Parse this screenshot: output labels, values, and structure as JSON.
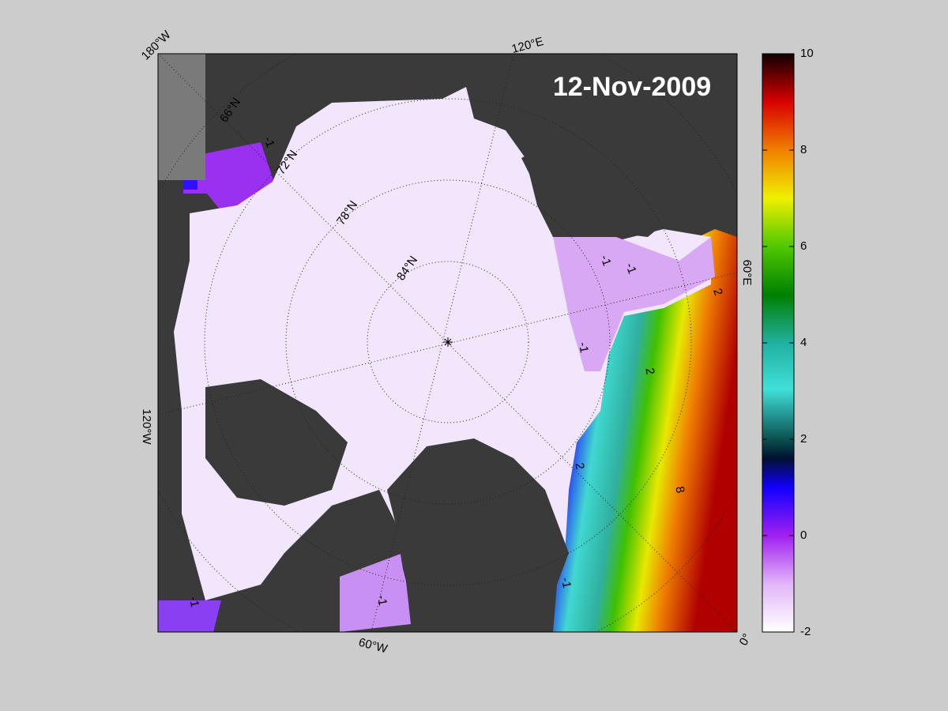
{
  "map": {
    "title": "12-Nov-2009",
    "longitude_labels": [
      "180°W",
      "120°E",
      "60°E",
      "0°",
      "60°W",
      "120°W"
    ],
    "latitude_labels": [
      "66°N",
      "72°N",
      "78°N",
      "84°N"
    ],
    "contour_labels": [
      "-1",
      "-1",
      "-1",
      "2",
      "-1",
      "2",
      "2",
      "8",
      "-1",
      "-1",
      "-1"
    ],
    "colorbar": {
      "lim": [
        -2,
        10
      ],
      "ticks": [
        -2,
        0,
        2,
        4,
        6,
        8,
        10
      ]
    }
  }
}
